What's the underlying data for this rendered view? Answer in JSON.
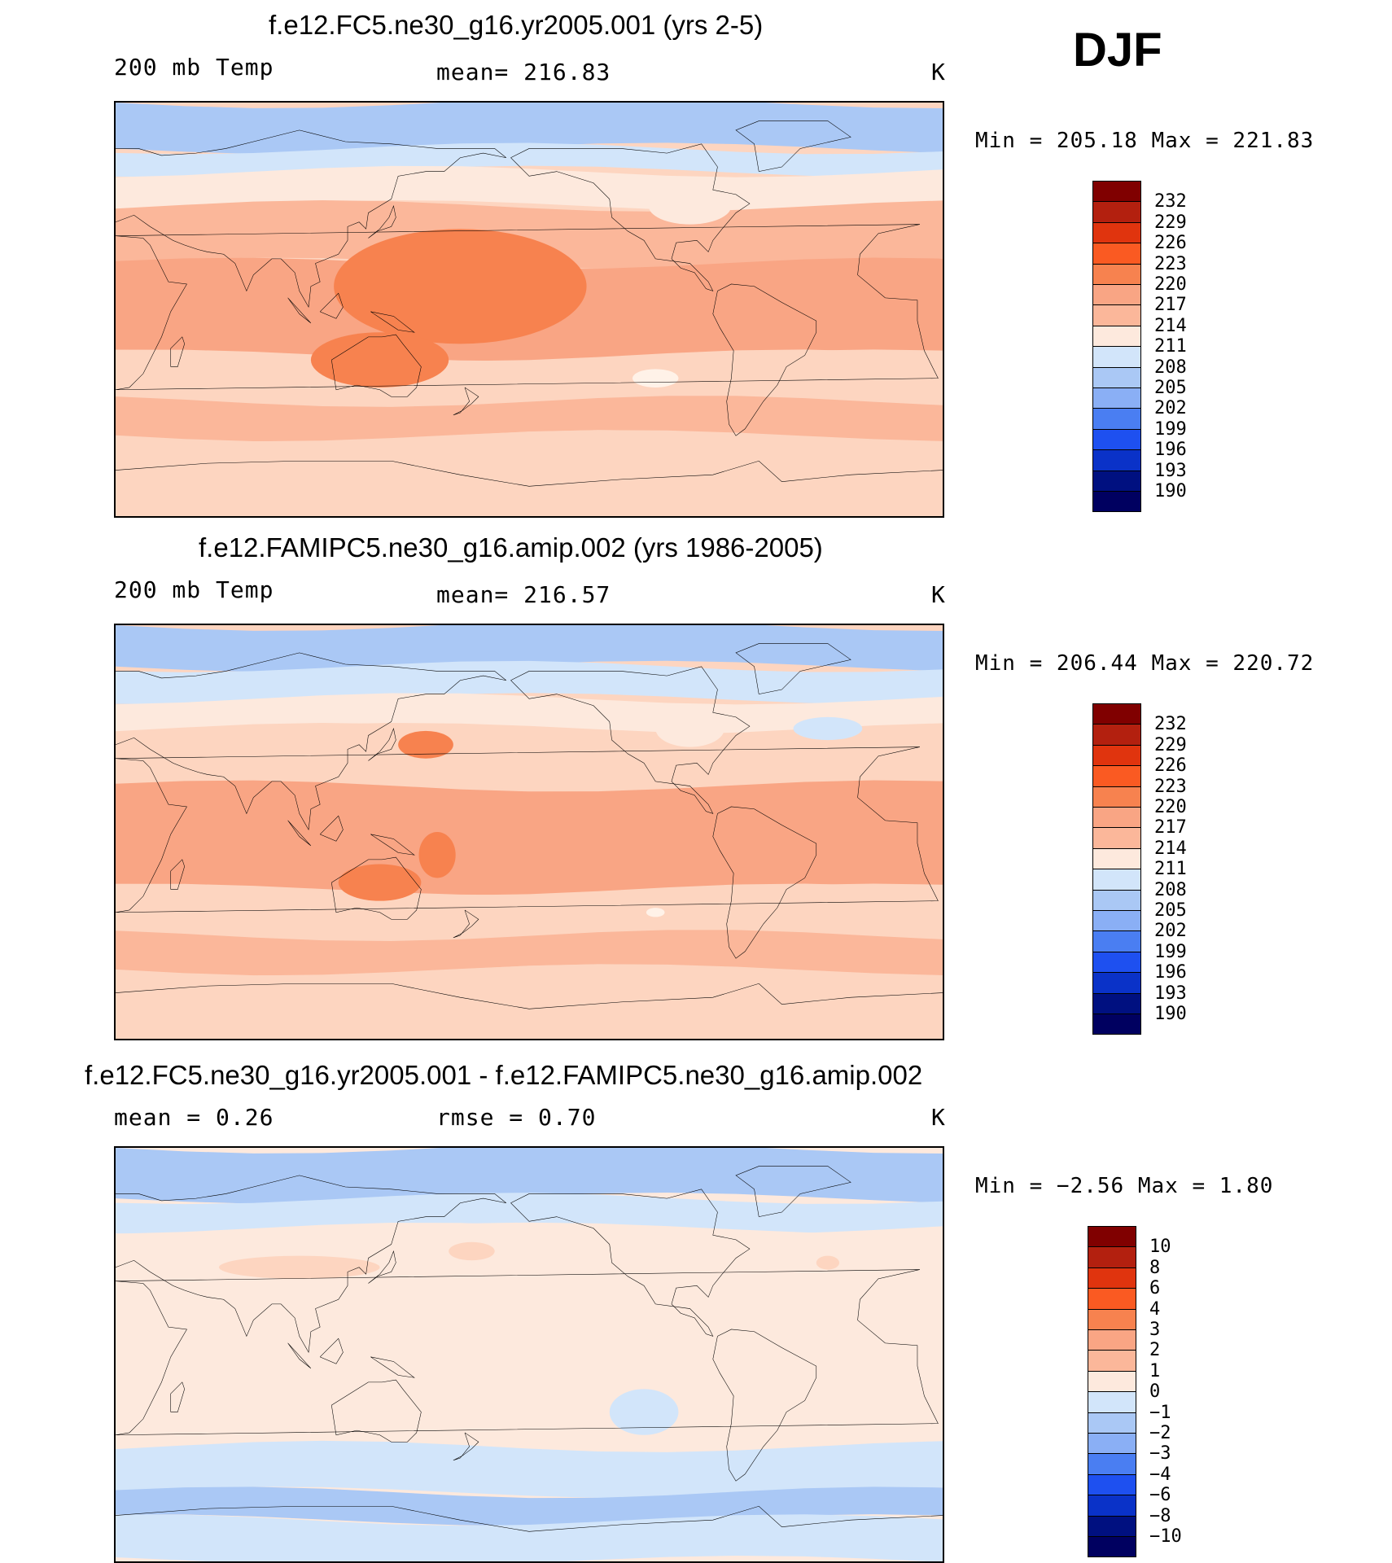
{
  "season": "DJF",
  "colors": {
    "ocean_base": "#ffffff",
    "coast": "#000000"
  },
  "panels": [
    {
      "title": "f.e12.FC5.ne30_g16.yr2005.001 (yrs 2-5)",
      "left_label": "200 mb Temp",
      "center_label": "mean= 216.83",
      "units": "K",
      "minmax": "Min = 205.18 Max = 221.83",
      "scale": "abs",
      "field_bg": "#fdd5c0",
      "bands": [
        {
          "lat_from": 90,
          "lat_to": 70,
          "color": "#aac8f5"
        },
        {
          "lat_from": 70,
          "lat_to": 60,
          "color": "#d2e5fa"
        },
        {
          "lat_from": 60,
          "lat_to": 45,
          "color": "#fde9dd"
        },
        {
          "lat_from": 45,
          "lat_to": 20,
          "color": "#fbb79a"
        },
        {
          "lat_from": 20,
          "lat_to": -20,
          "color": "#f9a584"
        },
        {
          "lat_from": -20,
          "lat_to": -40,
          "color": "#fdd5c0"
        },
        {
          "lat_from": -40,
          "lat_to": -55,
          "color": "#fbb79a"
        },
        {
          "lat_from": -55,
          "lat_to": -90,
          "color": "#fdd5c0"
        }
      ],
      "blobs": [
        {
          "lon": 170,
          "lat": 10,
          "rx": 55,
          "ry": 25,
          "color": "#f7824f"
        },
        {
          "lon": 135,
          "lat": -22,
          "rx": 30,
          "ry": 12,
          "color": "#f7824f"
        },
        {
          "lon": 255,
          "lat": -30,
          "rx": 10,
          "ry": 4,
          "color": "#fff2e8"
        },
        {
          "lon": 270,
          "lat": 45,
          "rx": 18,
          "ry": 8,
          "color": "#fde9dd"
        }
      ]
    },
    {
      "title": "f.e12.FAMIPC5.ne30_g16.amip.002 (yrs 1986-2005)",
      "left_label": "200 mb Temp",
      "center_label": "mean= 216.57",
      "units": "K",
      "minmax": "Min = 206.44 Max = 220.72",
      "scale": "abs",
      "field_bg": "#fdd5c0",
      "bands": [
        {
          "lat_from": 90,
          "lat_to": 72,
          "color": "#aac8f5"
        },
        {
          "lat_from": 72,
          "lat_to": 58,
          "color": "#d2e5fa"
        },
        {
          "lat_from": 58,
          "lat_to": 45,
          "color": "#fde9dd"
        },
        {
          "lat_from": 45,
          "lat_to": 20,
          "color": "#fdd5c0"
        },
        {
          "lat_from": 20,
          "lat_to": -25,
          "color": "#f9a584"
        },
        {
          "lat_from": -25,
          "lat_to": -45,
          "color": "#fdd5c0"
        },
        {
          "lat_from": -45,
          "lat_to": -60,
          "color": "#fbb79a"
        },
        {
          "lat_from": -60,
          "lat_to": -90,
          "color": "#fdd5c0"
        }
      ],
      "blobs": [
        {
          "lon": 155,
          "lat": 38,
          "rx": 12,
          "ry": 6,
          "color": "#f7824f"
        },
        {
          "lon": 135,
          "lat": -22,
          "rx": 18,
          "ry": 8,
          "color": "#f7824f"
        },
        {
          "lon": 160,
          "lat": -10,
          "rx": 8,
          "ry": 10,
          "color": "#f7824f"
        },
        {
          "lon": 255,
          "lat": -35,
          "rx": 4,
          "ry": 2,
          "color": "#fff2e8"
        },
        {
          "lon": 270,
          "lat": 45,
          "rx": 15,
          "ry": 8,
          "color": "#fde9dd"
        },
        {
          "lon": 330,
          "lat": 45,
          "rx": 15,
          "ry": 5,
          "color": "#d2e5fa"
        }
      ]
    },
    {
      "title": "f.e12.FC5.ne30_g16.yr2005.001 - f.e12.FAMIPC5.ne30_g16.amip.002",
      "left_label": "mean =    0.26",
      "center_label": "rmse =    0.70",
      "units": "K",
      "minmax": "Min =  −2.56 Max =    1.80",
      "scale": "diff",
      "field_bg": "#fde9dd",
      "bands": [
        {
          "lat_from": 90,
          "lat_to": 68,
          "color": "#aac8f5"
        },
        {
          "lat_from": 68,
          "lat_to": 55,
          "color": "#d2e5fa"
        },
        {
          "lat_from": 55,
          "lat_to": -40,
          "color": "#fde9dd"
        },
        {
          "lat_from": -40,
          "lat_to": -60,
          "color": "#d2e5fa"
        },
        {
          "lat_from": -60,
          "lat_to": -72,
          "color": "#aac8f5"
        },
        {
          "lat_from": -72,
          "lat_to": -90,
          "color": "#d2e5fa"
        }
      ],
      "blobs": [
        {
          "lon": 100,
          "lat": 38,
          "rx": 35,
          "ry": 5,
          "color": "#fdd5c0"
        },
        {
          "lon": 175,
          "lat": 45,
          "rx": 10,
          "ry": 4,
          "color": "#fdd5c0"
        },
        {
          "lon": 330,
          "lat": 40,
          "rx": 5,
          "ry": 3,
          "color": "#fdd5c0"
        },
        {
          "lon": 250,
          "lat": -25,
          "rx": 15,
          "ry": 10,
          "color": "#d2e5fa"
        }
      ]
    }
  ],
  "colorbars": [
    {
      "labels": [
        "232",
        "229",
        "226",
        "223",
        "220",
        "217",
        "214",
        "211",
        "208",
        "205",
        "202",
        "199",
        "196",
        "193",
        "190"
      ],
      "colors": [
        "#800000",
        "#b3200f",
        "#e0340e",
        "#fa5a22",
        "#f7824f",
        "#f9a584",
        "#fbb79a",
        "#fde9dd",
        "#d2e5fa",
        "#aac8f5",
        "#8aaff5",
        "#4a7ef2",
        "#1e50f0",
        "#0a32c8",
        "#001080",
        "#000060"
      ]
    },
    {
      "labels": [
        "232",
        "229",
        "226",
        "223",
        "220",
        "217",
        "214",
        "211",
        "208",
        "205",
        "202",
        "199",
        "196",
        "193",
        "190"
      ],
      "colors": [
        "#800000",
        "#b3200f",
        "#e0340e",
        "#fa5a22",
        "#f7824f",
        "#f9a584",
        "#fbb79a",
        "#fde9dd",
        "#d2e5fa",
        "#aac8f5",
        "#8aaff5",
        "#4a7ef2",
        "#1e50f0",
        "#0a32c8",
        "#001080",
        "#000060"
      ]
    },
    {
      "labels": [
        "10",
        "8",
        "6",
        "4",
        "3",
        "2",
        "1",
        "0",
        "−1",
        "−2",
        "−3",
        "−4",
        "−6",
        "−8",
        "−10"
      ],
      "colors": [
        "#800000",
        "#b3200f",
        "#e0340e",
        "#fa5a22",
        "#f7824f",
        "#f9a584",
        "#fbb79a",
        "#fde9dd",
        "#d2e5fa",
        "#aac8f5",
        "#8aaff5",
        "#4a7ef2",
        "#1e50f0",
        "#0a32c8",
        "#001080",
        "#000060"
      ]
    }
  ]
}
